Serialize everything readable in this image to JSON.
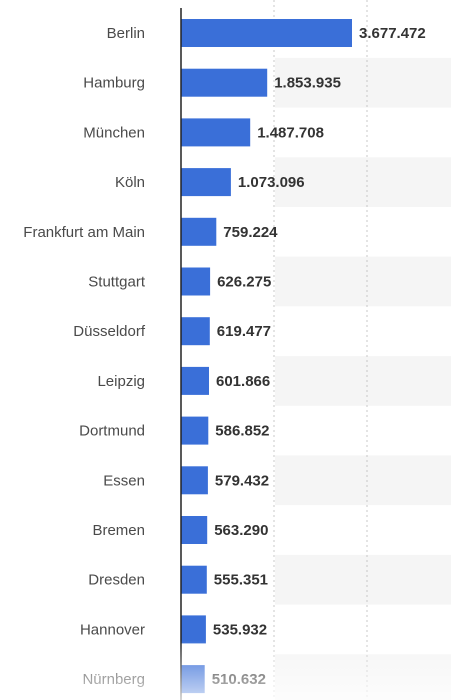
{
  "colors": {
    "bar": "#3a6fd8",
    "alt_row": "#f5f5f5",
    "axis": "#222222",
    "grid": "#c8c8c8"
  },
  "chart_data": {
    "type": "bar",
    "orientation": "horizontal",
    "categories": [
      "Berlin",
      "Hamburg",
      "München",
      "Köln",
      "Frankfurt am Main",
      "Stuttgart",
      "Düsseldorf",
      "Leipzig",
      "Dortmund",
      "Essen",
      "Bremen",
      "Dresden",
      "Hannover",
      "Nürnberg"
    ],
    "values": [
      3677472,
      1853935,
      1487708,
      1073096,
      759224,
      626275,
      619477,
      601866,
      586852,
      579432,
      563290,
      555351,
      535932,
      510632
    ],
    "value_labels": [
      "3.677.472",
      "1.853.935",
      "1.487.708",
      "1.073.096",
      "759.224",
      "626.275",
      "619.477",
      "601.866",
      "586.852",
      "579.432",
      "563.290",
      "555.351",
      "535.932",
      "510.632"
    ],
    "xlim": [
      0,
      4000000
    ],
    "gridlines": [
      2000000,
      4000000
    ],
    "grid": true,
    "title": "",
    "xlabel": "",
    "ylabel": ""
  }
}
